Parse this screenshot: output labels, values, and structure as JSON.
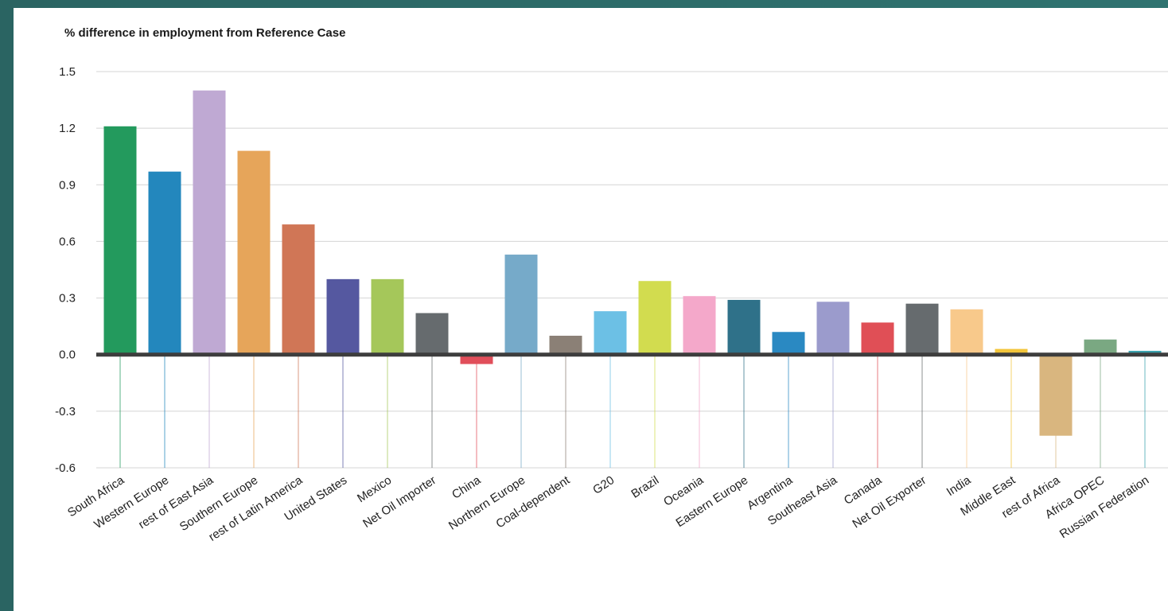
{
  "chart_data": {
    "type": "bar",
    "title": "",
    "ylabel": "% difference in employment from Reference Case",
    "xlabel": "",
    "ylim": [
      -0.6,
      1.5
    ],
    "yticks": [
      "1.5",
      "1.2",
      "0.9",
      "0.6",
      "0.3",
      "0.0",
      "-0.3",
      "-0.6"
    ],
    "ytick_values": [
      1.5,
      1.2,
      0.9,
      0.6,
      0.3,
      0.0,
      -0.3,
      -0.6
    ],
    "grid": true,
    "categories": [
      "South Africa",
      "Western Europe",
      "rest of East Asia",
      "Southern Europe",
      "rest of Latin America",
      "United States",
      "Mexico",
      "Net Oil Importer",
      "China",
      "Northern Europe",
      "Coal-dependent",
      "G20",
      "Brazil",
      "Oceania",
      "Eastern Europe",
      "Argentina",
      "Southeast Asia",
      "Canada",
      "Net Oil Exporter",
      "India",
      "Middle East",
      "rest of Africa",
      "Africa OPEC",
      "Russian Federation"
    ],
    "values": [
      1.21,
      0.97,
      1.4,
      1.08,
      0.69,
      0.4,
      0.4,
      0.22,
      -0.05,
      0.53,
      0.1,
      0.23,
      0.39,
      0.31,
      0.29,
      0.12,
      0.28,
      0.17,
      0.27,
      0.24,
      0.03,
      -0.43,
      0.08,
      0.02
    ],
    "colors": [
      "#239a5d",
      "#2387bd",
      "#bfa9d3",
      "#e6a55a",
      "#d07656",
      "#5558a0",
      "#a5c75a",
      "#666b6e",
      "#e14e5a",
      "#76aac9",
      "#8b8076",
      "#6cc0e5",
      "#d2dc4f",
      "#f4a8ca",
      "#2f7189",
      "#2a89c2",
      "#9b9bcc",
      "#e04f56",
      "#666b6e",
      "#f8c98b",
      "#f2c53b",
      "#d9b67f",
      "#7aa882",
      "#3aa1ad"
    ]
  }
}
